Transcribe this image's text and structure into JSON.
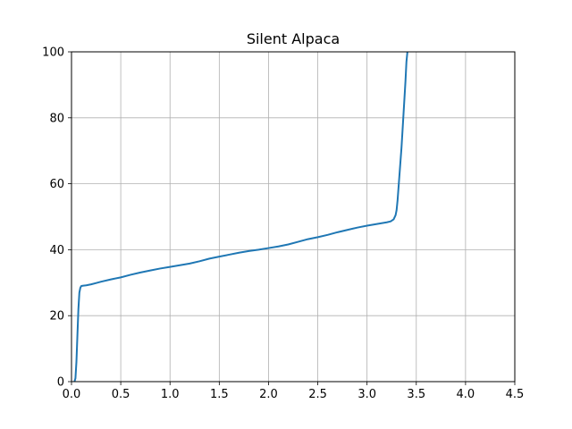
{
  "chart_data": {
    "type": "line",
    "title": "Silent Alpaca",
    "xlabel": "",
    "ylabel": "",
    "xlim": [
      0,
      4.5
    ],
    "ylim": [
      0,
      100
    ],
    "grid": true,
    "x_ticks": [
      "0.0",
      "0.5",
      "1.0",
      "1.5",
      "2.0",
      "2.5",
      "3.0",
      "3.5",
      "4.0",
      "4.5"
    ],
    "y_ticks": [
      "0",
      "20",
      "40",
      "60",
      "80",
      "100"
    ],
    "colors": {
      "line": "#1f77b4",
      "grid": "#b0b0b0",
      "axes": "#000000"
    },
    "series": [
      {
        "x": [
          0.03,
          0.04,
          0.05,
          0.06,
          0.07,
          0.08,
          0.09,
          0.1,
          0.12,
          0.15,
          0.2,
          0.25,
          0.3,
          0.4,
          0.5,
          0.6,
          0.7,
          0.8,
          0.9,
          1.0,
          1.1,
          1.2,
          1.3,
          1.4,
          1.5,
          1.6,
          1.7,
          1.8,
          1.9,
          2.0,
          2.1,
          2.2,
          2.3,
          2.4,
          2.5,
          2.6,
          2.7,
          2.8,
          2.9,
          3.0,
          3.1,
          3.2,
          3.24,
          3.27,
          3.29,
          3.3,
          3.31,
          3.32,
          3.33,
          3.34,
          3.35,
          3.36,
          3.37,
          3.38,
          3.39,
          3.4,
          3.41
        ],
        "y": [
          0,
          1,
          6,
          14,
          22,
          27,
          28.5,
          29,
          29.1,
          29.2,
          29.5,
          29.9,
          30.3,
          31,
          31.6,
          32.4,
          33.1,
          33.7,
          34.3,
          34.8,
          35.3,
          35.8,
          36.5,
          37.3,
          37.9,
          38.5,
          39.1,
          39.6,
          40.0,
          40.5,
          41.0,
          41.6,
          42.4,
          43.2,
          43.8,
          44.5,
          45.3,
          46.0,
          46.7,
          47.3,
          47.8,
          48.3,
          48.6,
          49.2,
          50.5,
          52,
          55,
          59,
          63,
          67,
          71,
          76,
          81,
          86,
          91,
          97,
          100
        ]
      }
    ]
  }
}
